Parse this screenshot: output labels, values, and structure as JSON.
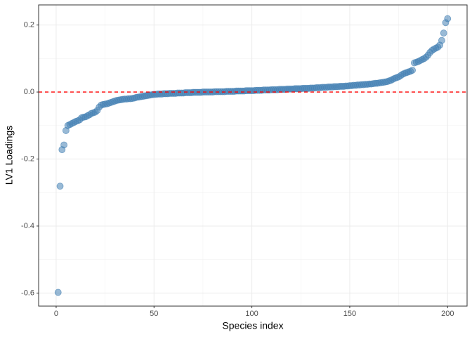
{
  "chart_data": {
    "type": "scatter",
    "x_label": "Species index",
    "y_label": "LV1 Loadings",
    "xlim": [
      -8.95,
      209.95
    ],
    "ylim": [
      -0.639,
      0.26
    ],
    "xticks": [
      0,
      50,
      100,
      150,
      200
    ],
    "yticks": [
      -0.6,
      -0.4,
      -0.2,
      {
        "value": 0,
        "label": "0.0"
      },
      0.2
    ],
    "grid": true,
    "minor_grid": true,
    "reference_line": 0,
    "reference_line_color": "#ff0000",
    "color": "#4682b4",
    "x": [
      1,
      2,
      3,
      4,
      5,
      6,
      7,
      8,
      9,
      10,
      11,
      12,
      13,
      14,
      15,
      16,
      17,
      18,
      19,
      20,
      21,
      22,
      23,
      24,
      25,
      26,
      27,
      28,
      29,
      30,
      31,
      32,
      33,
      34,
      35,
      36,
      37,
      38,
      39,
      40,
      41,
      42,
      43,
      44,
      45,
      46,
      47,
      48,
      49,
      50,
      51,
      52,
      53,
      54,
      55,
      56,
      57,
      58,
      59,
      60,
      61,
      62,
      63,
      64,
      65,
      66,
      67,
      68,
      69,
      70,
      71,
      72,
      73,
      74,
      75,
      76,
      77,
      78,
      79,
      80,
      81,
      82,
      83,
      84,
      85,
      86,
      87,
      88,
      89,
      90,
      91,
      92,
      93,
      94,
      95,
      96,
      97,
      98,
      99,
      100,
      101,
      102,
      103,
      104,
      105,
      106,
      107,
      108,
      109,
      110,
      111,
      112,
      113,
      114,
      115,
      116,
      117,
      118,
      119,
      120,
      121,
      122,
      123,
      124,
      125,
      126,
      127,
      128,
      129,
      130,
      131,
      132,
      133,
      134,
      135,
      136,
      137,
      138,
      139,
      140,
      141,
      142,
      143,
      144,
      145,
      146,
      147,
      148,
      149,
      150,
      151,
      152,
      153,
      154,
      155,
      156,
      157,
      158,
      159,
      160,
      161,
      162,
      163,
      164,
      165,
      166,
      167,
      168,
      169,
      170,
      171,
      172,
      173,
      174,
      175,
      176,
      177,
      178,
      179,
      180,
      181,
      182,
      183,
      184,
      185,
      186,
      187,
      188,
      189,
      190,
      191,
      192,
      193,
      194,
      195,
      196,
      197,
      198,
      199,
      200
    ],
    "values": [
      -0.598,
      -0.281,
      -0.172,
      -0.158,
      -0.115,
      -0.1,
      -0.097,
      -0.094,
      -0.091,
      -0.088,
      -0.086,
      -0.083,
      -0.077,
      -0.075,
      -0.074,
      -0.071,
      -0.068,
      -0.064,
      -0.062,
      -0.06,
      -0.055,
      -0.045,
      -0.039,
      -0.037,
      -0.036,
      -0.035,
      -0.033,
      -0.031,
      -0.029,
      -0.027,
      -0.025,
      -0.024,
      -0.023,
      -0.022,
      -0.021,
      -0.021,
      -0.02,
      -0.02,
      -0.019,
      -0.018,
      -0.016,
      -0.015,
      -0.014,
      -0.013,
      -0.012,
      -0.011,
      -0.01,
      -0.009,
      -0.008,
      -0.007,
      -0.007,
      -0.006,
      -0.006,
      -0.006,
      -0.005,
      -0.005,
      -0.005,
      -0.004,
      -0.004,
      -0.004,
      -0.004,
      -0.003,
      -0.003,
      -0.003,
      -0.003,
      -0.002,
      -0.002,
      -0.002,
      -0.002,
      -0.001,
      -0.001,
      -0.001,
      -0.001,
      -0.001,
      0,
      0,
      0,
      0,
      0,
      0,
      0.001,
      0.001,
      0.001,
      0.001,
      0.001,
      0.001,
      0.002,
      0.002,
      0.002,
      0.002,
      0.002,
      0.003,
      0.003,
      0.003,
      0.003,
      0.003,
      0.004,
      0.004,
      0.004,
      0.004,
      0.004,
      0.005,
      0.005,
      0.005,
      0.005,
      0.006,
      0.006,
      0.006,
      0.006,
      0.007,
      0.007,
      0.007,
      0.007,
      0.008,
      0.008,
      0.008,
      0.008,
      0.009,
      0.009,
      0.009,
      0.009,
      0.01,
      0.01,
      0.01,
      0.01,
      0.011,
      0.011,
      0.011,
      0.011,
      0.012,
      0.012,
      0.012,
      0.013,
      0.013,
      0.013,
      0.014,
      0.014,
      0.014,
      0.015,
      0.015,
      0.015,
      0.016,
      0.016,
      0.016,
      0.017,
      0.017,
      0.017,
      0.018,
      0.018,
      0.019,
      0.019,
      0.02,
      0.02,
      0.021,
      0.021,
      0.022,
      0.022,
      0.023,
      0.023,
      0.024,
      0.024,
      0.025,
      0.026,
      0.026,
      0.027,
      0.028,
      0.029,
      0.03,
      0.031,
      0.033,
      0.035,
      0.038,
      0.041,
      0.043,
      0.045,
      0.049,
      0.053,
      0.056,
      0.058,
      0.06,
      0.062,
      0.065,
      0.087,
      0.089,
      0.091,
      0.094,
      0.097,
      0.1,
      0.104,
      0.11,
      0.118,
      0.124,
      0.128,
      0.131,
      0.134,
      0.14,
      0.154,
      0.176,
      0.207,
      0.219
    ]
  }
}
